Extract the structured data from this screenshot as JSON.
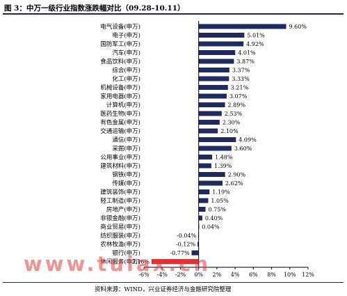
{
  "title": "图 3：中万一级行业指数涨跌幅对比（09.28-10.11）",
  "source": "资料来源：WIND，兴业证券经济与金融研究院整理",
  "watermark": "www.tuiax.cn",
  "colors": {
    "bar": "#1f2a5e",
    "highlight_bar": "#e03030",
    "axis": "#000000"
  },
  "chart_data": {
    "type": "bar",
    "orientation": "horizontal",
    "title": "中万一级行业指数涨跌幅对比（09.28-10.11）",
    "xlabel": "",
    "ylabel": "",
    "xlim": [
      -6,
      12
    ],
    "xticks": [
      "-6%",
      "-4%",
      "-2%",
      "0%",
      "2%",
      "4%",
      "6%",
      "8%",
      "10%",
      "12%"
    ],
    "grid": false,
    "legend": "none",
    "categories": [
      "电气设备(申万)",
      "电子(申万)",
      "国防军工(申万)",
      "汽车(申万)",
      "食品饮料(申万)",
      "综合(申万)",
      "化工(申万)",
      "机械设备(申万)",
      "家用电器(申万)",
      "计算机(申万)",
      "医药生物(申万)",
      "有色金属(申万)",
      "交通运输(申万)",
      "通信(申万)",
      "采掘(申万)",
      "公用事业(申万)",
      "建筑材料(申万)",
      "钢铁(申万)",
      "传媒(申万)",
      "建筑装饰(申万)",
      "轻工制造(申万)",
      "房地产(申万)",
      "非银金融(申万)",
      "商业贸易(申万)",
      "纺织服装(申万)",
      "农林牧渔(申万)",
      "银行(申万)",
      "休闲服务(申万)"
    ],
    "values": [
      9.6,
      5.01,
      4.92,
      4.01,
      3.87,
      3.37,
      3.33,
      3.21,
      3.07,
      2.89,
      2.53,
      2.3,
      2.1,
      4.09,
      3.6,
      1.48,
      1.39,
      2.9,
      2.62,
      1.19,
      1.05,
      0.75,
      0.4,
      0.04,
      -0.04,
      -0.12,
      -0.77,
      -5.16
    ],
    "value_labels": [
      "9.60%",
      "5.01%",
      "4.92%",
      "4.01%",
      "3.87%",
      "3.37%",
      "3.33%",
      "3.21%",
      "3.07%",
      "2.89%",
      "2.53%",
      "2.30%",
      "2.10%",
      "4.09%",
      "3.60%",
      "1.48%",
      "1.39%",
      "2.90%",
      "2.62%",
      "1.19%",
      "1.05%",
      "0.75%",
      "0.40%",
      "0.04%",
      "-0.04%",
      "-0.12%",
      "-0.77%",
      "-5.16%"
    ],
    "highlight_category": "休闲服务(申万)"
  }
}
